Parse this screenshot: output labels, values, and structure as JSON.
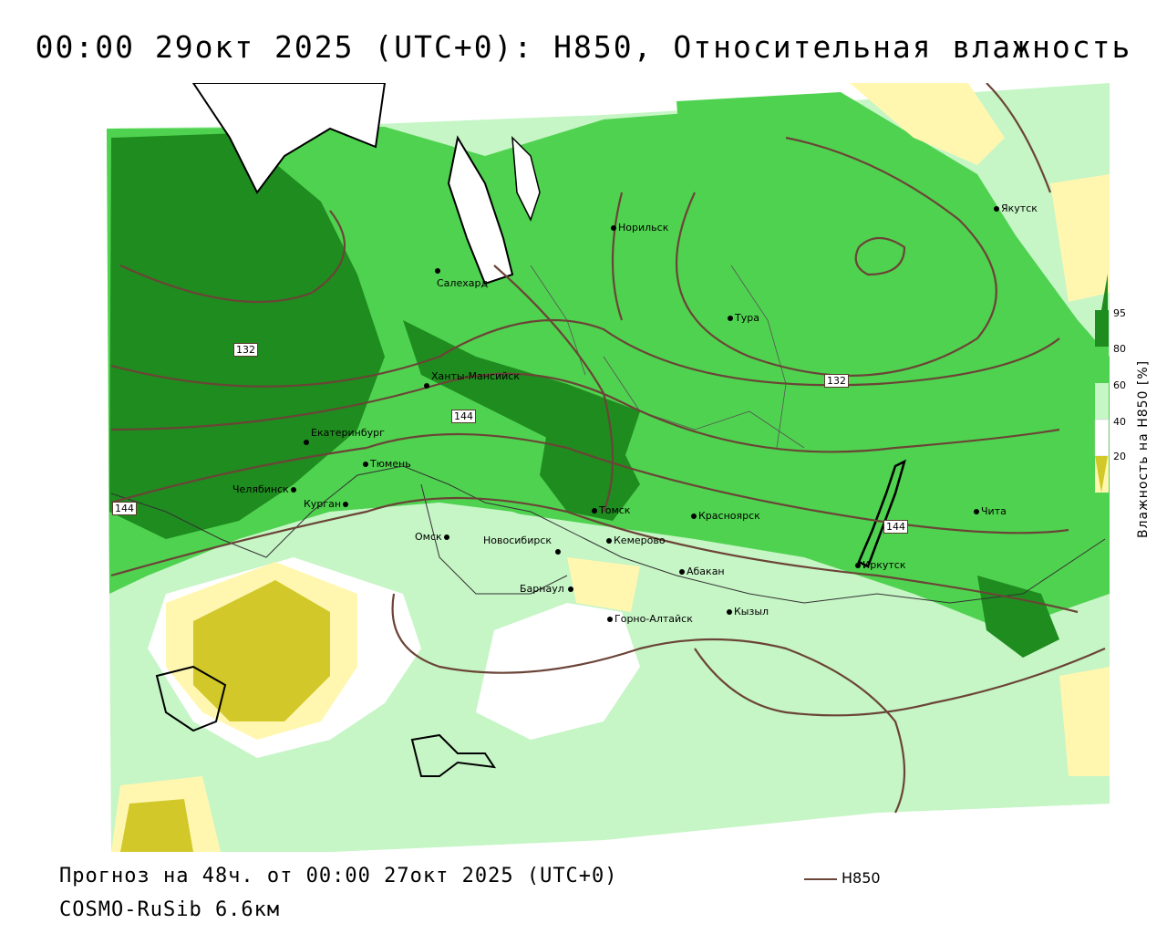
{
  "title": "00:00 29окт 2025 (UTC+0): H850, Относительная влажность",
  "footer": {
    "forecast": "Прогноз на 48ч. от 00:00 27окт 2025 (UTC+0)",
    "model": "COSMO-RuSib 6.6км",
    "line_legend": "H850"
  },
  "colorbar": {
    "title": "Влажность на H850 [%]",
    "ticks": [
      "95",
      "80",
      "60",
      "40",
      "20"
    ],
    "colors": {
      "c95": "#1e8c1e",
      "c80": "#4fd24f",
      "c60": "#c6f5c6",
      "c40": "#ffffff",
      "c20": "#fff7b0",
      "c0": "#d2c82a"
    }
  },
  "contour_labels": [
    "132",
    "144",
    "132",
    "144",
    "144"
  ],
  "cities": [
    {
      "name": "Якутск"
    },
    {
      "name": "Норильск"
    },
    {
      "name": "Салехард"
    },
    {
      "name": "Тура"
    },
    {
      "name": "Ханты-Мансийск"
    },
    {
      "name": "Екатеринбург"
    },
    {
      "name": "Тюмень"
    },
    {
      "name": "Челябинск"
    },
    {
      "name": "Курган"
    },
    {
      "name": "Омск"
    },
    {
      "name": "Томск"
    },
    {
      "name": "Новосибирск"
    },
    {
      "name": "Кемерово"
    },
    {
      "name": "Красноярск"
    },
    {
      "name": "Чита"
    },
    {
      "name": "Иркутск"
    },
    {
      "name": "Абакан"
    },
    {
      "name": "Барнаул"
    },
    {
      "name": "Горно-Алтайск"
    },
    {
      "name": "Кызыл"
    }
  ]
}
